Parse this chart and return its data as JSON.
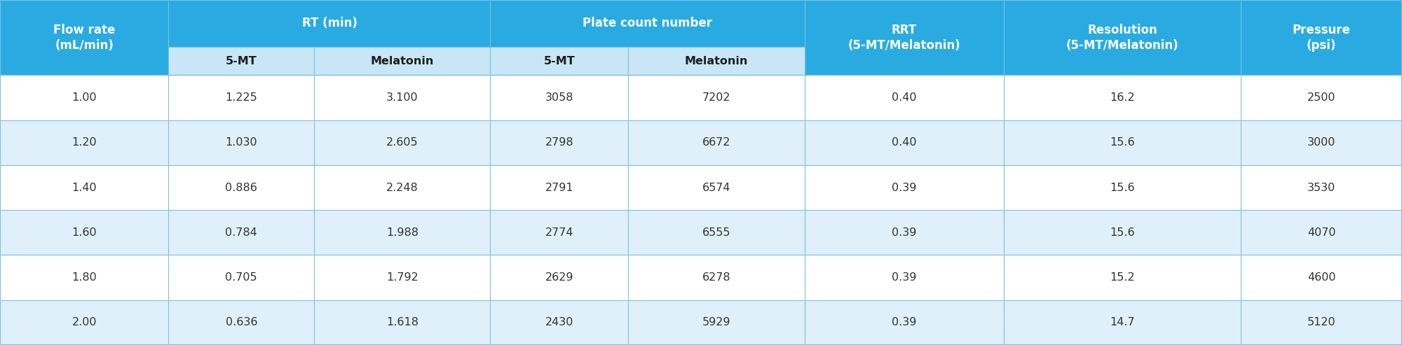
{
  "col_widths_raw": [
    1.1,
    0.95,
    1.15,
    0.9,
    1.15,
    1.3,
    1.55,
    1.05
  ],
  "header_bg": "#29ABE2",
  "subheader_bg": "#C8E6F5",
  "row_bg_odd": "#FFFFFF",
  "row_bg_even": "#DFF0FA",
  "grid_color": "#7FBFDF",
  "outer_border_color": "#5599BB",
  "header_text_color": "#FFFFFF",
  "subheader_text_color": "#1C1C1C",
  "data_text_color": "#333333",
  "header_fontsize": 12.0,
  "subheader_fontsize": 11.5,
  "data_fontsize": 11.5,
  "header_row1_labels": [
    "Flow rate\n(mL/min)",
    "RT (min)",
    "Plate count number",
    "RRT\n(5-MT/Melatonin)",
    "Resolution\n(5-MT/Melatonin)",
    "Pressure\n(psi)"
  ],
  "header_row2_labels": [
    "5-MT",
    "Melatonin",
    "5-MT",
    "Melatonin"
  ],
  "rows": [
    [
      "1.00",
      "1.225",
      "3.100",
      "3058",
      "7202",
      "0.40",
      "16.2",
      "2500"
    ],
    [
      "1.20",
      "1.030",
      "2.605",
      "2798",
      "6672",
      "0.40",
      "15.6",
      "3000"
    ],
    [
      "1.40",
      "0.886",
      "2.248",
      "2791",
      "6574",
      "0.39",
      "15.6",
      "3530"
    ],
    [
      "1.60",
      "0.784",
      "1.988",
      "2774",
      "6555",
      "0.39",
      "15.6",
      "4070"
    ],
    [
      "1.80",
      "0.705",
      "1.792",
      "2629",
      "6278",
      "0.39",
      "15.2",
      "4600"
    ],
    [
      "2.00",
      "0.636",
      "1.618",
      "2430",
      "5929",
      "0.39",
      "14.7",
      "5120"
    ]
  ]
}
